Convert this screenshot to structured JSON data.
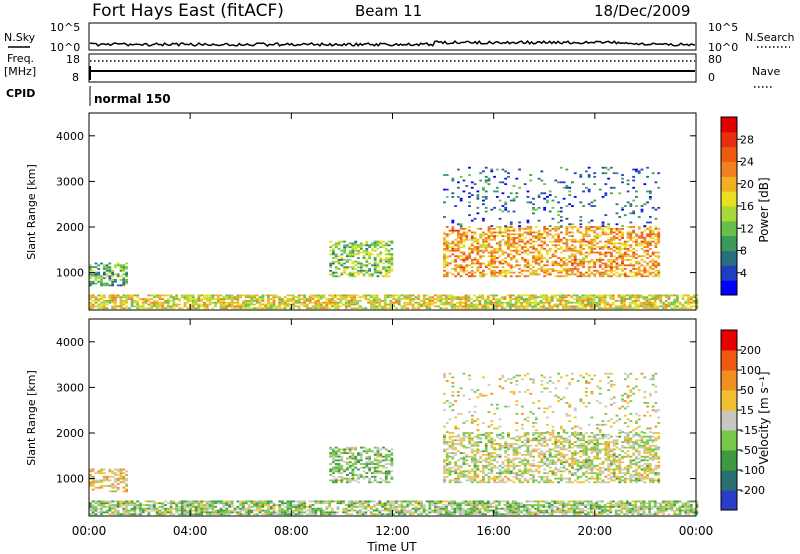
{
  "header": {
    "station": "Fort Hays East (fitACF)",
    "beam": "Beam 11",
    "date": "18/Dec/2009"
  },
  "top_panel": {
    "nsky_label": "N.Sky",
    "nsearch_label": "N.Search",
    "freq_label": "Freq.",
    "freq_unit": "[MHz]",
    "nave_label": "Nave",
    "cpid_label": "CPID",
    "cpid_value": "normal 150",
    "noise_ticks": [
      "10^5",
      "10^0"
    ],
    "freq_ticks": [
      "18",
      "8"
    ],
    "nave_ticks": [
      "80",
      "0"
    ]
  },
  "colorbars": {
    "power": {
      "label": "Power [dB]",
      "ticks": [
        "28",
        "24",
        "20",
        "16",
        "12",
        "8",
        "4"
      ],
      "colors": [
        "#0000ff",
        "#1f3fbf",
        "#2a6f7f",
        "#3a9a5a",
        "#66c04a",
        "#a8d83a",
        "#e8e020",
        "#f0b020",
        "#f08020",
        "#ee5a10",
        "#e83010",
        "#e00000"
      ]
    },
    "velocity": {
      "label": "Velocity [m s⁻¹]",
      "ticks": [
        "200",
        "100",
        "50",
        "15",
        "-15",
        "-50",
        "-100",
        "-200"
      ],
      "colors": [
        "#2a3cc8",
        "#2a6f6f",
        "#3f9a3f",
        "#77c84a",
        "#c8c8c0",
        "#f0c030",
        "#f09020",
        "#f05a10",
        "#e80000"
      ]
    }
  },
  "chart_data": [
    {
      "type": "heatmap",
      "name": "Power",
      "ylabel": "Slant Range [km]",
      "ylim": [
        180,
        4500
      ],
      "yticks": [
        1000,
        2000,
        3000,
        4000
      ],
      "xlim": [
        0,
        24
      ],
      "xticks": [
        "00:00",
        "04:00",
        "08:00",
        "12:00",
        "16:00",
        "20:00",
        "00:00"
      ],
      "colorbar_range": [
        0,
        30
      ],
      "regions": [
        {
          "desc": "near-range band",
          "t": [
            0,
            24
          ],
          "range": [
            200,
            500
          ],
          "value": 16
        },
        {
          "desc": "early ionospheric echoes",
          "t": [
            0,
            1.5
          ],
          "range": [
            700,
            1200
          ],
          "value": 10
        },
        {
          "desc": "evening feature",
          "t": [
            9.5,
            12
          ],
          "range": [
            900,
            1700
          ],
          "value": 12
        },
        {
          "desc": "main arc",
          "t": [
            14,
            22.5
          ],
          "range": [
            900,
            2000
          ],
          "value": 20
        },
        {
          "desc": "upper scatter",
          "t": [
            14,
            22.5
          ],
          "range": [
            2000,
            3300
          ],
          "value": 6
        }
      ]
    },
    {
      "type": "heatmap",
      "name": "Velocity",
      "ylabel": "Slant Range [km]",
      "xlabel": "Time UT",
      "ylim": [
        180,
        4500
      ],
      "yticks": [
        1000,
        2000,
        3000,
        4000
      ],
      "xlim": [
        0,
        24
      ],
      "xticks": [
        "00:00",
        "04:00",
        "08:00",
        "12:00",
        "16:00",
        "20:00",
        "00:00"
      ],
      "colorbar_range": [
        -200,
        200
      ],
      "regions": [
        {
          "desc": "near-range band",
          "t": [
            0,
            24
          ],
          "range": [
            200,
            500
          ],
          "value": -30
        },
        {
          "desc": "early echoes",
          "t": [
            0,
            1.5
          ],
          "range": [
            700,
            1200
          ],
          "value": 40
        },
        {
          "desc": "evening feature",
          "t": [
            9.5,
            12
          ],
          "range": [
            900,
            1700
          ],
          "value": -40
        },
        {
          "desc": "main arc",
          "t": [
            14,
            22.5
          ],
          "range": [
            900,
            2000
          ],
          "value": 0
        },
        {
          "desc": "upper scatter",
          "t": [
            14,
            22.5
          ],
          "range": [
            2000,
            3300
          ],
          "value": 10
        }
      ]
    }
  ]
}
